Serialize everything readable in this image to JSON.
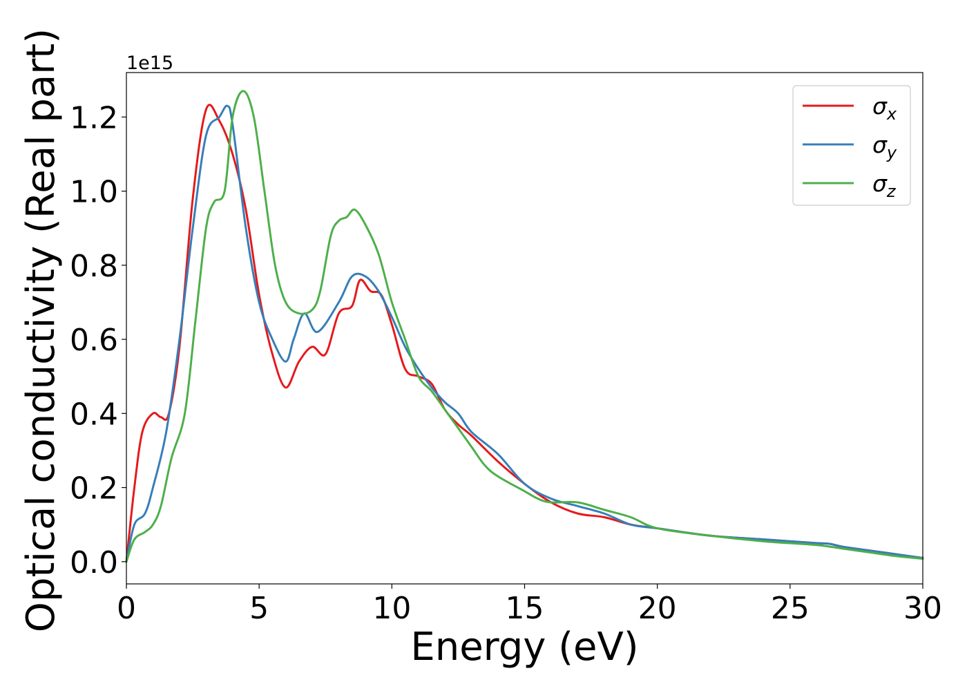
{
  "chart_data": {
    "type": "line",
    "title": "",
    "xlabel": "Energy (eV)",
    "ylabel": "Optical conductivity (Real part)",
    "y_scale_label": "1e15",
    "y_scale": 1000000000000000.0,
    "xlim": [
      0,
      30
    ],
    "ylim": [
      -0.06,
      1.32
    ],
    "xticks": [
      0,
      5,
      10,
      15,
      20,
      25,
      30
    ],
    "xtick_labels": [
      "0",
      "5",
      "10",
      "15",
      "20",
      "25",
      "30"
    ],
    "yticks": [
      0.0,
      0.2,
      0.4,
      0.6,
      0.8,
      1.0,
      1.2
    ],
    "ytick_labels": [
      "0.0",
      "0.2",
      "0.4",
      "0.6",
      "0.8",
      "1.0",
      "1.2"
    ],
    "grid": false,
    "legend_position": "top-right",
    "series": [
      {
        "name": "σx",
        "label_base": "σ",
        "label_sub": "x",
        "color": "#e41a1c",
        "x": [
          0,
          0.3,
          0.6,
          1.0,
          1.3,
          1.6,
          2.0,
          2.5,
          3.0,
          3.5,
          4.0,
          4.5,
          5.0,
          5.5,
          6.0,
          6.5,
          7.0,
          7.5,
          8.0,
          8.5,
          8.8,
          9.2,
          9.6,
          10.0,
          10.5,
          11.0,
          11.5,
          12.0,
          12.5,
          13.0,
          14.0,
          15.0,
          16.0,
          17.0,
          18.0,
          19.0,
          20.0,
          22.0,
          24.0,
          25.0,
          26.0,
          26.5,
          27.0,
          28.0,
          29.0,
          30.0
        ],
        "y": [
          0.0,
          0.2,
          0.35,
          0.4,
          0.39,
          0.4,
          0.58,
          0.98,
          1.22,
          1.19,
          1.1,
          0.95,
          0.72,
          0.56,
          0.47,
          0.54,
          0.58,
          0.56,
          0.67,
          0.69,
          0.76,
          0.73,
          0.72,
          0.64,
          0.52,
          0.5,
          0.48,
          0.41,
          0.37,
          0.34,
          0.27,
          0.21,
          0.16,
          0.13,
          0.12,
          0.1,
          0.09,
          0.07,
          0.06,
          0.055,
          0.05,
          0.048,
          0.04,
          0.03,
          0.02,
          0.01
        ]
      },
      {
        "name": "σy",
        "label_base": "σ",
        "label_sub": "y",
        "color": "#377eb8",
        "x": [
          0,
          0.3,
          0.7,
          1.0,
          1.5,
          2.0,
          2.5,
          3.0,
          3.5,
          3.8,
          4.0,
          4.5,
          5.0,
          5.5,
          6.0,
          6.3,
          6.7,
          7.2,
          8.0,
          8.5,
          9.0,
          9.5,
          10.0,
          10.5,
          11.0,
          11.5,
          12.0,
          12.5,
          13.0,
          14.0,
          15.0,
          16.0,
          17.0,
          18.0,
          19.0,
          20.0,
          22.0,
          24.0,
          25.0,
          26.0,
          26.5,
          27.0,
          28.0,
          29.0,
          30.0
        ],
        "y": [
          0.0,
          0.1,
          0.13,
          0.2,
          0.35,
          0.6,
          0.9,
          1.15,
          1.2,
          1.23,
          1.18,
          0.9,
          0.7,
          0.6,
          0.54,
          0.6,
          0.67,
          0.62,
          0.7,
          0.77,
          0.77,
          0.73,
          0.66,
          0.58,
          0.52,
          0.47,
          0.43,
          0.4,
          0.35,
          0.29,
          0.21,
          0.17,
          0.15,
          0.13,
          0.1,
          0.09,
          0.07,
          0.06,
          0.055,
          0.05,
          0.048,
          0.04,
          0.03,
          0.02,
          0.01
        ]
      },
      {
        "name": "σz",
        "label_base": "σ",
        "label_sub": "z",
        "color": "#4daf4a",
        "x": [
          0,
          0.3,
          0.7,
          1.0,
          1.3,
          1.7,
          2.2,
          2.6,
          3.0,
          3.3,
          3.7,
          4.0,
          4.4,
          4.8,
          5.2,
          5.6,
          6.0,
          6.5,
          7.0,
          7.3,
          7.7,
          8.0,
          8.3,
          8.6,
          9.0,
          9.5,
          10.0,
          10.5,
          11.0,
          11.5,
          12.0,
          12.5,
          13.0,
          13.5,
          14.0,
          15.0,
          15.5,
          16.0,
          17.0,
          18.0,
          19.0,
          20.0,
          22.0,
          24.0,
          26.0,
          27.0,
          28.0,
          29.0,
          30.0
        ],
        "y": [
          0.0,
          0.06,
          0.08,
          0.1,
          0.15,
          0.28,
          0.4,
          0.65,
          0.9,
          0.97,
          1.0,
          1.2,
          1.27,
          1.2,
          1.0,
          0.8,
          0.7,
          0.67,
          0.68,
          0.73,
          0.88,
          0.92,
          0.93,
          0.95,
          0.91,
          0.83,
          0.7,
          0.6,
          0.5,
          0.46,
          0.41,
          0.36,
          0.31,
          0.26,
          0.23,
          0.19,
          0.17,
          0.16,
          0.16,
          0.14,
          0.12,
          0.09,
          0.07,
          0.055,
          0.045,
          0.035,
          0.025,
          0.015,
          0.008
        ]
      }
    ]
  }
}
